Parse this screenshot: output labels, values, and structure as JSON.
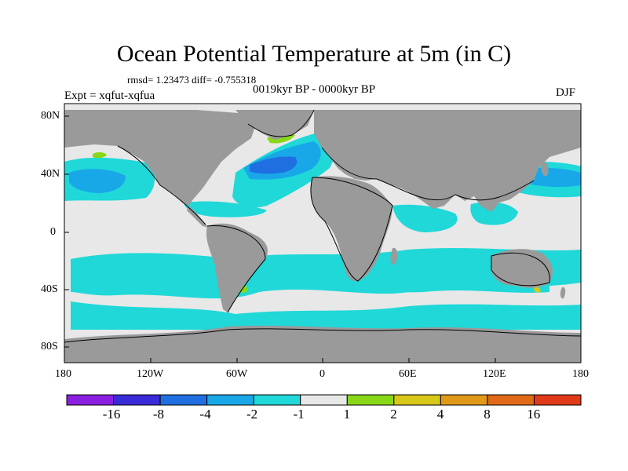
{
  "title": "Ocean Potential Temperature at 5m (in C)",
  "stats": "rmsd= 1.23473  diff= -0.755318",
  "period": "0019kyr BP - 0000kyr BP",
  "experiment": "Expt = xqfut-xqfua",
  "season": "DJF",
  "axes": {
    "lat_labels": [
      "80N",
      "40N",
      "0",
      "40S",
      "80S"
    ],
    "lon_labels": [
      "180",
      "120W",
      "60W",
      "0",
      "60E",
      "120E",
      "180"
    ]
  },
  "colorbar": {
    "colors": [
      "#8a1fe0",
      "#3a2ad8",
      "#1f6fe0",
      "#18a8e8",
      "#20d8d8",
      "#e8e8e8",
      "#88d818",
      "#d8c818",
      "#e09a18",
      "#e06a18",
      "#e03a18"
    ],
    "labels": [
      "-16",
      "-8",
      "-4",
      "-2",
      "-1",
      "1",
      "2",
      "4",
      "8",
      "16"
    ]
  },
  "colors": {
    "land": "#9a9a9a",
    "ocean_neutral": "#e8e8e8",
    "cool": "#20d8d8",
    "cooler": "#18a8e8",
    "cold": "#1f6fe0",
    "warm": "#88d818",
    "warmer": "#d8c818"
  }
}
